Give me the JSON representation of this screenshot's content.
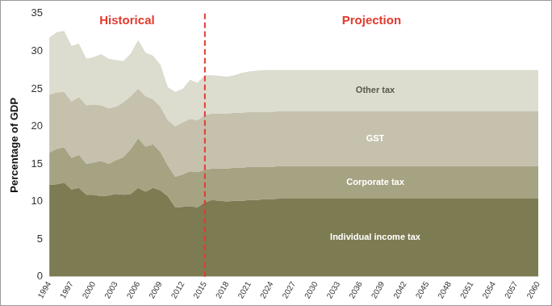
{
  "chart_data": {
    "type": "area",
    "stacked": true,
    "grid": false,
    "y_label": "Percentage of GDP",
    "annotations": [
      "Historical",
      "Projection"
    ],
    "projection_start": 2015,
    "ylim": [
      0,
      35
    ],
    "yticks": [
      0,
      5,
      10,
      15,
      20,
      25,
      30,
      35
    ],
    "categories": [
      1994,
      null,
      null,
      1997,
      null,
      null,
      2000,
      null,
      null,
      2003,
      null,
      null,
      2006,
      null,
      null,
      2009,
      null,
      null,
      2012,
      null,
      null,
      2015,
      null,
      null,
      2018,
      null,
      null,
      2021,
      null,
      null,
      2024,
      null,
      null,
      2027,
      null,
      null,
      2030,
      null,
      null,
      2033,
      null,
      null,
      2036,
      null,
      null,
      2039,
      null,
      null,
      2042,
      null,
      null,
      2045,
      null,
      null,
      2048,
      null,
      null,
      2051,
      null,
      null,
      2054,
      null,
      null,
      2057,
      null,
      null,
      2060
    ],
    "series": [
      {
        "name": "Individual income tax",
        "color": "#7d7b52",
        "values": [
          12.2,
          12.3,
          12.5,
          11.6,
          11.8,
          10.9,
          10.9,
          10.7,
          10.8,
          11.0,
          10.9,
          11.0,
          11.8,
          11.3,
          11.8,
          11.5,
          10.7,
          9.2,
          9.3,
          9.4,
          9.2,
          9.9,
          10.2,
          10.1,
          10.0,
          10.1,
          10.1,
          10.2,
          10.2,
          10.3,
          10.3,
          10.4,
          10.4,
          10.4,
          10.4,
          10.4,
          10.4,
          10.4,
          10.4,
          10.4,
          10.4,
          10.4,
          10.4,
          10.4,
          10.4,
          10.4,
          10.4,
          10.4,
          10.4,
          10.4,
          10.4,
          10.4,
          10.4,
          10.4,
          10.4,
          10.4,
          10.4,
          10.4,
          10.4,
          10.4,
          10.4,
          10.4,
          10.4,
          10.4,
          10.4,
          10.4,
          10.4
        ]
      },
      {
        "name": "Corporate tax",
        "color": "#a6a383",
        "values": [
          4.3,
          4.7,
          4.7,
          4.2,
          4.4,
          4.1,
          4.3,
          4.7,
          4.2,
          4.5,
          5.0,
          6.0,
          6.6,
          6.0,
          5.8,
          5.1,
          4.1,
          4.1,
          4.3,
          4.6,
          4.7,
          4.3,
          4.2,
          4.3,
          4.4,
          4.4,
          4.4,
          4.4,
          4.4,
          4.3,
          4.3,
          4.3,
          4.3,
          4.3,
          4.3,
          4.3,
          4.3,
          4.3,
          4.3,
          4.3,
          4.3,
          4.3,
          4.3,
          4.3,
          4.3,
          4.3,
          4.3,
          4.3,
          4.3,
          4.3,
          4.3,
          4.3,
          4.3,
          4.3,
          4.3,
          4.3,
          4.3,
          4.3,
          4.3,
          4.3,
          4.3,
          4.3,
          4.3,
          4.3,
          4.3,
          4.3,
          4.3
        ]
      },
      {
        "name": "GST",
        "color": "#c5c1ad",
        "values": [
          7.7,
          7.5,
          7.4,
          7.5,
          7.7,
          7.8,
          7.7,
          7.4,
          7.4,
          7.1,
          7.3,
          7.0,
          6.6,
          6.7,
          6.0,
          6.0,
          6.0,
          6.7,
          6.9,
          7.0,
          6.9,
          7.3,
          7.3,
          7.3,
          7.3,
          7.3,
          7.3,
          7.3,
          7.3,
          7.3,
          7.3,
          7.3,
          7.3,
          7.3,
          7.3,
          7.3,
          7.3,
          7.3,
          7.3,
          7.3,
          7.3,
          7.3,
          7.3,
          7.3,
          7.3,
          7.3,
          7.3,
          7.3,
          7.3,
          7.3,
          7.3,
          7.3,
          7.3,
          7.3,
          7.3,
          7.3,
          7.3,
          7.3,
          7.3,
          7.3,
          7.3,
          7.3,
          7.3,
          7.3,
          7.3,
          7.3,
          7.3
        ]
      },
      {
        "name": "Other tax",
        "color": "#dcdccf",
        "values": [
          7.6,
          8.0,
          8.1,
          7.4,
          7.1,
          6.2,
          6.3,
          6.8,
          6.6,
          6.2,
          5.5,
          5.7,
          6.5,
          5.8,
          5.8,
          5.6,
          4.4,
          4.6,
          4.5,
          5.2,
          5.0,
          5.3,
          5.1,
          5.0,
          4.9,
          5.0,
          5.3,
          5.4,
          5.5,
          5.6,
          5.6,
          5.5,
          5.5,
          5.5,
          5.5,
          5.5,
          5.5,
          5.5,
          5.5,
          5.5,
          5.5,
          5.5,
          5.5,
          5.5,
          5.5,
          5.5,
          5.5,
          5.5,
          5.5,
          5.5,
          5.5,
          5.5,
          5.5,
          5.5,
          5.5,
          5.5,
          5.5,
          5.5,
          5.5,
          5.5,
          5.5,
          5.5,
          5.5,
          5.5,
          5.5,
          5.5,
          5.5
        ]
      }
    ]
  }
}
